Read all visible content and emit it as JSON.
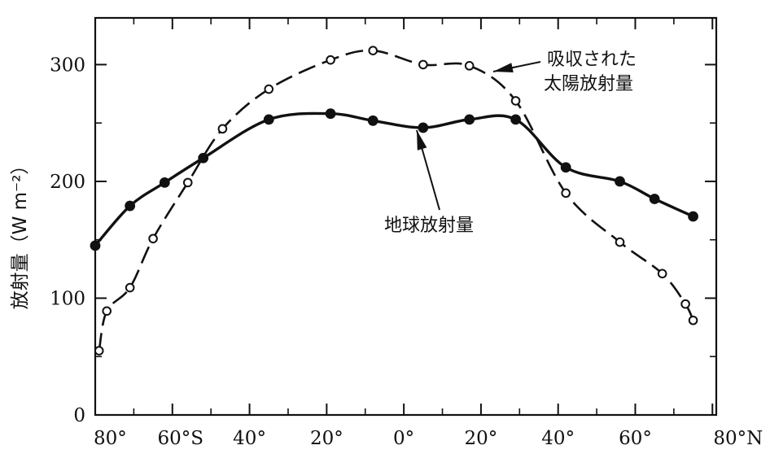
{
  "chart_data": {
    "type": "line",
    "ylabel": "放射量（W m⁻²）",
    "ylim": [
      0,
      340
    ],
    "xlim": [
      -80,
      81
    ],
    "yticks": [
      0,
      100,
      200,
      300
    ],
    "xticks": [
      {
        "value": -80,
        "label": "80°"
      },
      {
        "value": -60,
        "label": "60°S"
      },
      {
        "value": -40,
        "label": "40°"
      },
      {
        "value": -20,
        "label": "20°"
      },
      {
        "value": 0,
        "label": "0°"
      },
      {
        "value": 20,
        "label": "20°"
      },
      {
        "value": 40,
        "label": "40°"
      },
      {
        "value": 60,
        "label": "60°"
      },
      {
        "value": 80,
        "label": "80°N"
      }
    ],
    "grid": false,
    "series": [
      {
        "name": "吸収された太陽放射量",
        "marker": "open-circle",
        "line": "dashed",
        "x": [
          -79,
          -77,
          -71,
          -65,
          -56,
          -47,
          -35,
          -19,
          -8,
          5,
          17,
          29,
          42,
          56,
          67,
          73,
          75
        ],
        "y": [
          55,
          89,
          109,
          151,
          199,
          245,
          279,
          304,
          312,
          300,
          299,
          269,
          190,
          148,
          121,
          95,
          81
        ]
      },
      {
        "name": "地球放射量",
        "marker": "filled-circle",
        "line": "solid",
        "x": [
          -80,
          -71,
          -62,
          -52,
          -35,
          -19,
          -8,
          5,
          17,
          29,
          42,
          56,
          65,
          75
        ],
        "y": [
          145,
          179,
          199,
          220,
          253,
          258,
          252,
          246,
          253,
          253,
          212,
          200,
          185,
          170
        ]
      }
    ],
    "annotations": [
      {
        "lines": [
          "吸収された",
          "太陽放射量"
        ],
        "series": 0
      },
      {
        "lines": [
          "地球放射量"
        ],
        "series": 1
      }
    ]
  }
}
